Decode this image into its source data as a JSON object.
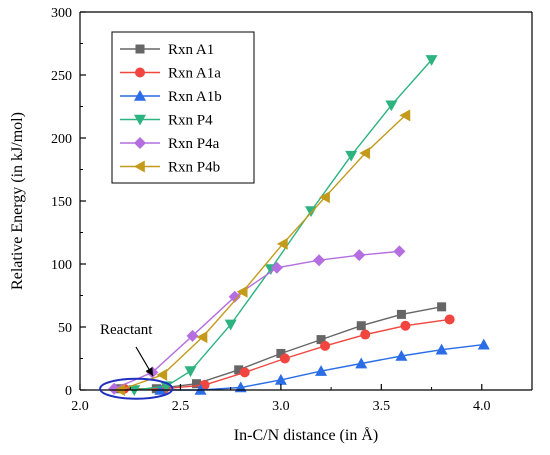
{
  "chart_data": {
    "type": "line",
    "title": "",
    "xlabel": "In-C/N distance (in Å)",
    "ylabel": "Relative Energy (in kJ/mol)",
    "xlim": [
      2.0,
      4.25
    ],
    "ylim": [
      0,
      300
    ],
    "xticks": [
      "2.0",
      "2.5",
      "3.0",
      "3.5",
      "4.0"
    ],
    "yticks": [
      "0",
      "50",
      "100",
      "150",
      "200",
      "250",
      "300"
    ],
    "grid": false,
    "legend_position": "top-left",
    "annotation": {
      "text": "Reactant"
    },
    "series": [
      {
        "name": "Rxn A1",
        "color": "#666666",
        "marker": "square",
        "x": [
          2.2,
          2.38,
          2.58,
          2.79,
          3.0,
          3.2,
          3.4,
          3.6,
          3.8
        ],
        "y": [
          1,
          1,
          5,
          16,
          29,
          40,
          51,
          60,
          66
        ]
      },
      {
        "name": "Rxn A1a",
        "color": "#f0463f",
        "marker": "circle",
        "x": [
          2.22,
          2.42,
          2.62,
          2.82,
          3.02,
          3.22,
          3.42,
          3.62,
          3.84
        ],
        "y": [
          1,
          1,
          4,
          14,
          25,
          35,
          44,
          51,
          56
        ]
      },
      {
        "name": "Rxn A1b",
        "color": "#2a6de6",
        "marker": "triangle-up",
        "x": [
          2.4,
          2.6,
          2.8,
          3.0,
          3.2,
          3.4,
          3.6,
          3.8,
          4.01
        ],
        "y": [
          0,
          0,
          2,
          8,
          15,
          21,
          27,
          32,
          36
        ]
      },
      {
        "name": "Rxn P4",
        "color": "#2db37f",
        "marker": "triangle-down",
        "x": [
          2.27,
          2.43,
          2.55,
          2.75,
          2.95,
          3.15,
          3.35,
          3.55,
          3.75
        ],
        "y": [
          0,
          3,
          15,
          52,
          96,
          142,
          186,
          226,
          262
        ]
      },
      {
        "name": "Rxn P4a",
        "color": "#b46ee0",
        "marker": "diamond",
        "x": [
          2.17,
          2.36,
          2.56,
          2.77,
          2.98,
          3.19,
          3.39,
          3.59
        ],
        "y": [
          1,
          14,
          43,
          74,
          97,
          103,
          107,
          110
        ]
      },
      {
        "name": "Rxn P4b",
        "color": "#c49a1a",
        "marker": "triangle-left",
        "x": [
          2.2,
          2.41,
          2.61,
          2.81,
          3.01,
          3.22,
          3.42,
          3.62
        ],
        "y": [
          0,
          12,
          42,
          78,
          116,
          153,
          188,
          218
        ]
      }
    ]
  }
}
